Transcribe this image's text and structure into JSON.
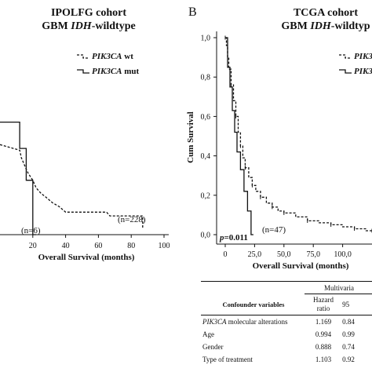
{
  "panel_b": {
    "letter": "B"
  },
  "chart_data": [
    {
      "type": "line",
      "title": "IPOLFG cohort",
      "subtitle_parts": [
        "GBM ",
        "IDH",
        "-wildtype"
      ],
      "xlabel": "Overall Survival (months)",
      "ylabel": "",
      "xlim": [
        0,
        100
      ],
      "ylim": [
        0,
        1
      ],
      "x_ticks": [
        20,
        40,
        60,
        80,
        100
      ],
      "legend": [
        {
          "gene": "PIK3CA",
          "status": " wt",
          "style": "dashed"
        },
        {
          "gene": "PIK3CA",
          "status": " mut",
          "style": "solid"
        }
      ],
      "annotations": [
        "(n=228)",
        "(n=6)"
      ],
      "series": [
        {
          "style": "dashed",
          "x": [
            0,
            12,
            13,
            15,
            17,
            20,
            22,
            25,
            28,
            32,
            36,
            40,
            45,
            55,
            65,
            67,
            70,
            80,
            87,
            87
          ],
          "y": [
            0.48,
            0.45,
            0.41,
            0.37,
            0.33,
            0.29,
            0.25,
            0.22,
            0.2,
            0.17,
            0.15,
            0.12,
            0.12,
            0.12,
            0.12,
            0.1,
            0.1,
            0.1,
            0.1,
            0.03
          ]
        },
        {
          "style": "solid",
          "x": [
            0,
            12,
            12,
            16,
            16,
            20,
            20,
            22
          ],
          "y": [
            0.6,
            0.6,
            0.46,
            0.46,
            0.29,
            0.29,
            0.0,
            0.0
          ]
        }
      ]
    },
    {
      "type": "line",
      "title": "TCGA cohort",
      "subtitle_parts": [
        "GBM ",
        "IDH",
        "-wildtyp"
      ],
      "xlabel": "Overall Survival (months)",
      "ylabel": "Cum Survival",
      "xlim": [
        0,
        125
      ],
      "ylim": [
        0,
        1
      ],
      "x_ticks": [
        "0",
        "25,0",
        "50,0",
        "75,0",
        "100,0"
      ],
      "x_tick_values": [
        0,
        25,
        50,
        75,
        100
      ],
      "y_ticks": [
        "0,0",
        "0,2",
        "0,4",
        "0,6",
        "0,8",
        "1,0"
      ],
      "y_tick_values": [
        0,
        0.2,
        0.4,
        0.6,
        0.8,
        1.0
      ],
      "legend": [
        {
          "gene": "PIK3",
          "style": "dashed"
        },
        {
          "gene": "PIK3",
          "style": "solid"
        }
      ],
      "p_value": {
        "label": "p",
        "value": "=0.011"
      },
      "annotations": [
        "(n=47)"
      ],
      "series": [
        {
          "style": "dashed",
          "x": [
            0,
            1,
            2,
            3,
            5,
            7,
            9,
            11,
            13,
            15,
            17,
            20,
            23,
            26,
            30,
            35,
            40,
            45,
            50,
            60,
            70,
            80,
            90,
            100,
            110,
            120,
            125
          ],
          "y": [
            1.0,
            0.96,
            0.9,
            0.84,
            0.76,
            0.68,
            0.6,
            0.52,
            0.45,
            0.39,
            0.34,
            0.29,
            0.25,
            0.22,
            0.19,
            0.16,
            0.14,
            0.12,
            0.11,
            0.09,
            0.07,
            0.06,
            0.05,
            0.04,
            0.03,
            0.02,
            0.02
          ]
        },
        {
          "style": "solid",
          "x": [
            0,
            2,
            2,
            4,
            4,
            6,
            6,
            8,
            8,
            10,
            10,
            13,
            13,
            16,
            16,
            19,
            19,
            22,
            22,
            24
          ],
          "y": [
            1.0,
            1.0,
            0.85,
            0.85,
            0.75,
            0.75,
            0.63,
            0.63,
            0.52,
            0.52,
            0.42,
            0.42,
            0.33,
            0.33,
            0.22,
            0.22,
            0.12,
            0.12,
            0.0,
            0.0
          ]
        }
      ]
    }
  ],
  "table": {
    "header_right": "Multivaria",
    "col_headers": {
      "variables": "Confounder variables",
      "hr_line1": "Hazard",
      "hr_line2": "ratio",
      "ci": "95"
    },
    "rows": [
      {
        "label_italic": "PIK3CA",
        "label_rest": " molecular alterations",
        "hr": "1.169",
        "ci": "0.84"
      },
      {
        "label_italic": "",
        "label_rest": "Age",
        "hr": "0.994",
        "ci": "0.99"
      },
      {
        "label_italic": "",
        "label_rest": "Gender",
        "hr": "0.888",
        "ci": "0.74"
      },
      {
        "label_italic": "",
        "label_rest": "Type of treatment",
        "hr": "1.103",
        "ci": "0.92"
      }
    ]
  }
}
